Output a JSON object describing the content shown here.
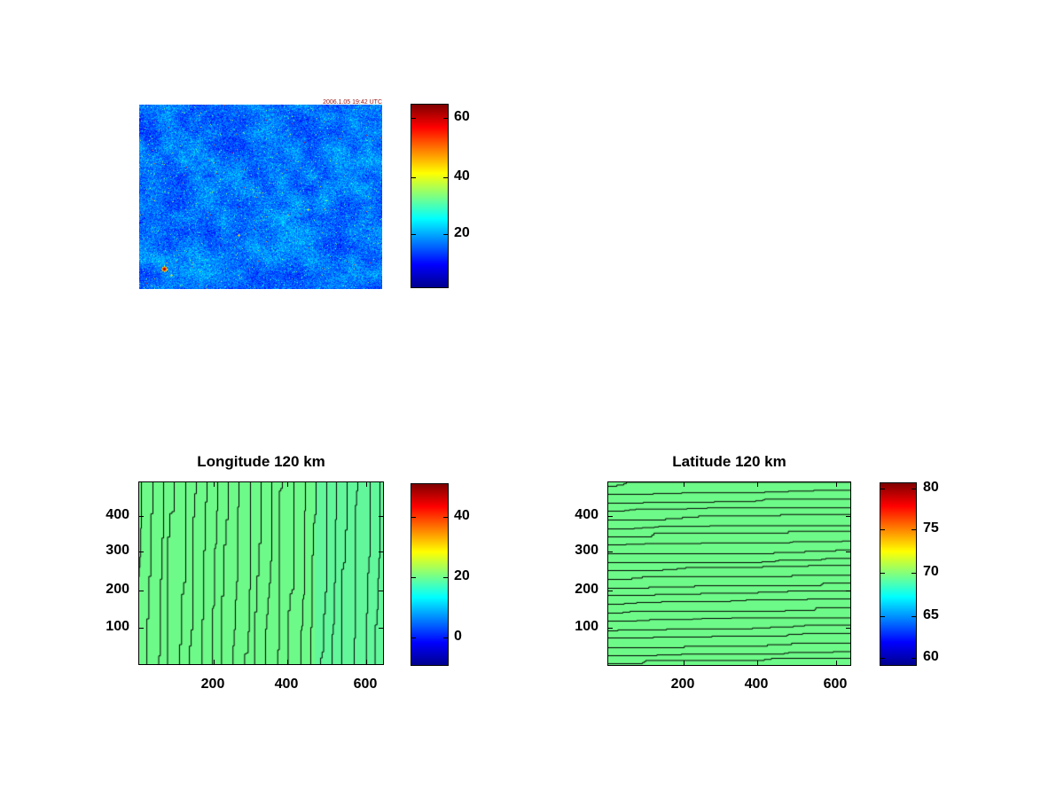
{
  "figure": {
    "background": "#ffffff",
    "panels": {
      "sar": {
        "overlay_text": "2006.1.05 19:42 UTC",
        "colorbar_ticks": [
          "60",
          "40",
          "20"
        ]
      },
      "longitude": {
        "title": "Longitude 120 km",
        "xticks": [
          "200",
          "400",
          "600"
        ],
        "yticks": [
          "400",
          "300",
          "200",
          "100"
        ],
        "colorbar_ticks": [
          "40",
          "20",
          "0"
        ]
      },
      "latitude": {
        "title": "Latitude 120 km",
        "xticks": [
          "200",
          "400",
          "600"
        ],
        "yticks": [
          "400",
          "300",
          "200",
          "100"
        ],
        "colorbar_ticks": [
          "80",
          "75",
          "70",
          "65",
          "60"
        ]
      }
    },
    "colors": {
      "green_left": "#6efa88",
      "green_right": "#62f79b",
      "contour_line": "#000000",
      "overlay_text_color": "#991111",
      "axis_color": "#000000",
      "jet_stops": [
        "#00008f",
        "#0000ff",
        "#00ffff",
        "#ffff00",
        "#ff0000",
        "#7f0000"
      ]
    }
  },
  "chart_data": [
    {
      "type": "heatmap",
      "panel": "top-left",
      "title": "",
      "description": "Noisy satellite backscatter image, jet colormap; mostly blue values ~5-25 with sparse cyan/green/yellow speckles, rare red dots, a dark-red blob near lower-left, and a tiny red timestamp overlay in the top-right corner",
      "overlay_text": "2006.1.05 19:42 UTC",
      "axes_visible": false,
      "colorbar": {
        "ticks": [
          20,
          40,
          60
        ],
        "range_est": [
          0,
          65
        ],
        "colormap": "jet",
        "position": "right"
      }
    },
    {
      "type": "heatmap",
      "panel": "bottom-left",
      "title": "Longitude 120 km",
      "xticks": [
        200,
        400,
        600
      ],
      "yticks": [
        100,
        200,
        300,
        400
      ],
      "xlim": [
        0,
        645
      ],
      "ylim": [
        0,
        487
      ],
      "field_value_est": 25,
      "contours": "about 23 near-vertical longitude contour lines, ~12 px apart, each drifting ~5 px left from top to bottom in small steps; background uniform green (value ~25), slightly bluer-green band on right quarter",
      "colorbar": {
        "ticks": [
          0,
          20,
          40
        ],
        "range_est": [
          -11,
          51
        ],
        "colormap": "jet",
        "position": "right"
      },
      "grid": false,
      "legend": false
    },
    {
      "type": "heatmap",
      "panel": "bottom-right",
      "title": "Latitude 120 km",
      "xticks": [
        200,
        400,
        600
      ],
      "yticks": [
        100,
        200,
        300,
        400
      ],
      "xlim": [
        0,
        645
      ],
      "ylim": [
        0,
        487
      ],
      "field_value_est": 70,
      "contours": "about 22 near-horizontal latitude contour lines, ~9 px apart, each rising ~5 px from left to right in small steps; background uniform green (value ~70)",
      "colorbar": {
        "ticks": [
          60,
          65,
          70,
          75,
          80
        ],
        "range_est": [
          59,
          80.5
        ],
        "colormap": "jet",
        "position": "right"
      },
      "grid": false,
      "legend": false
    }
  ]
}
